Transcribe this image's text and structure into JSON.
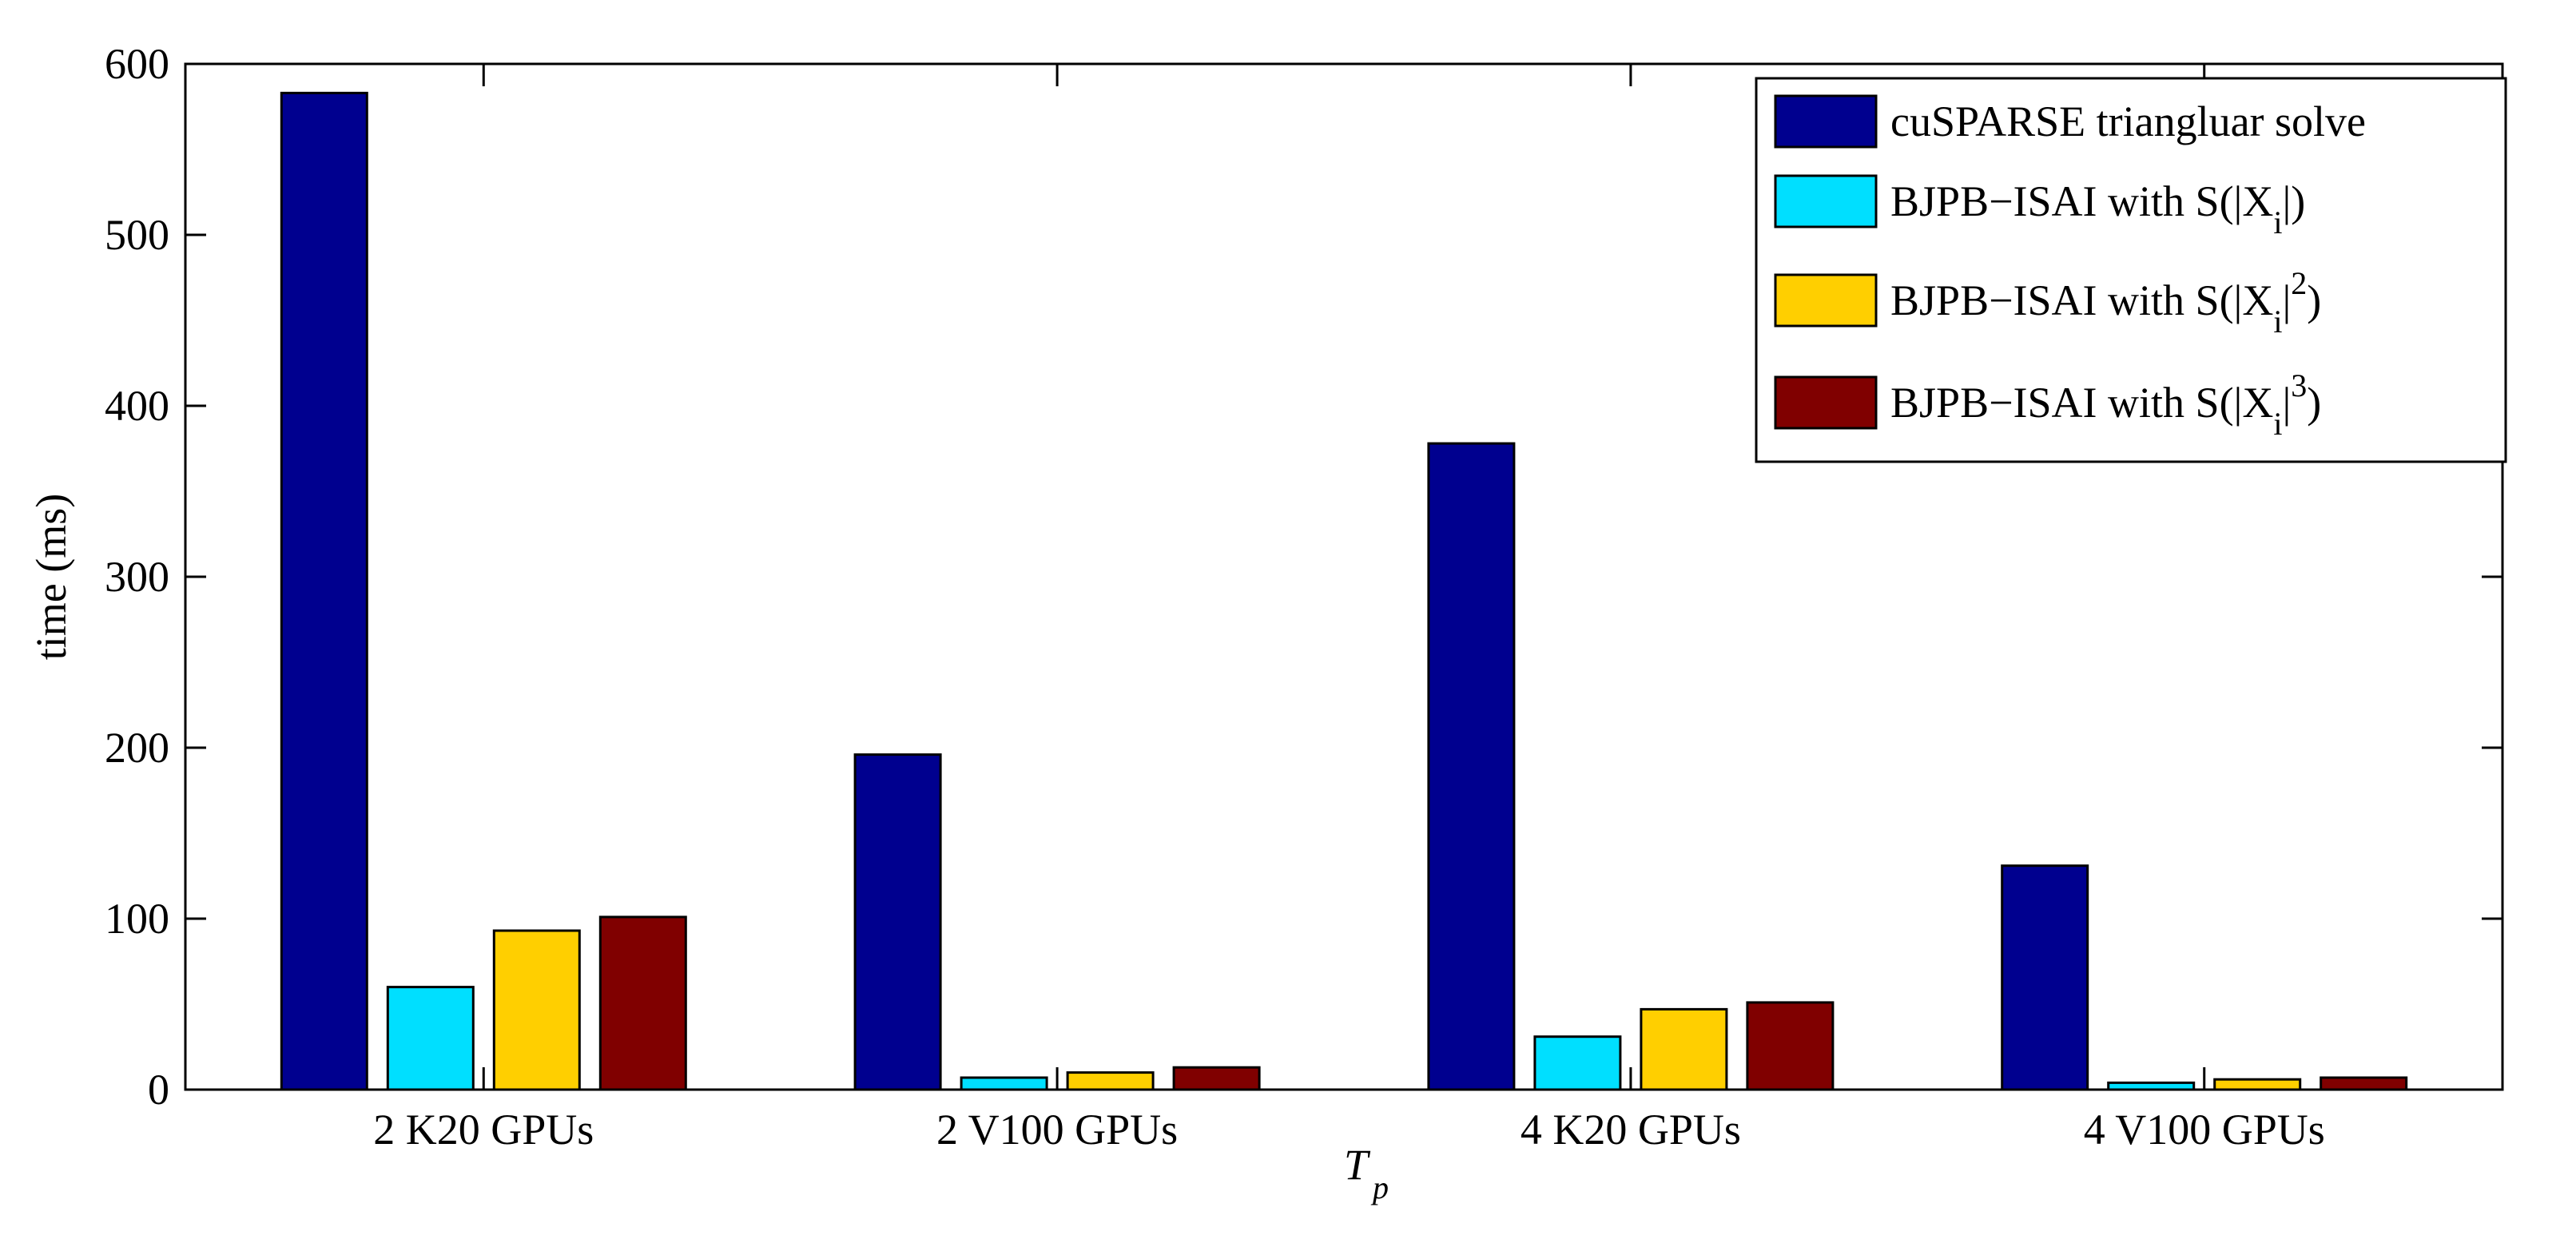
{
  "chart_data": {
    "type": "bar",
    "title": "",
    "xlabel_main": "T",
    "xlabel_sub": "p",
    "ylabel": "time (ms)",
    "ylim": [
      0,
      600
    ],
    "yticks": [
      0,
      100,
      200,
      300,
      400,
      500,
      600
    ],
    "grid": false,
    "legend_position": "top-right",
    "categories": [
      "2 K20 GPUs",
      "2 V100 GPUs",
      "4 K20 GPUs",
      "4 V100 GPUs"
    ],
    "series": [
      {
        "name": "cuSPARSE triangluar solve",
        "color": "#00008F",
        "values": [
          583,
          196,
          378,
          131
        ]
      },
      {
        "name": "BJPB−ISAI with S(|X_i|)",
        "color": "#00DFFF",
        "values": [
          60,
          7,
          31,
          4
        ]
      },
      {
        "name": "BJPB−ISAI with S(|X_i|^2)",
        "color": "#FFCF00",
        "values": [
          93,
          10,
          47,
          6
        ]
      },
      {
        "name": "BJPB−ISAI with S(|X_i|^3)",
        "color": "#800000",
        "values": [
          101,
          13,
          51,
          7
        ]
      }
    ],
    "legend": [
      {
        "prefix": "cuSPARSE triangluar solve",
        "sub": "",
        "mid": "",
        "sup": "",
        "suffix": ""
      },
      {
        "prefix": "BJPB−ISAI with S(|X",
        "sub": "i",
        "mid": "|",
        "sup": "",
        "suffix": ")"
      },
      {
        "prefix": "BJPB−ISAI with S(|X",
        "sub": "i",
        "mid": "|",
        "sup": "2",
        "suffix": ")"
      },
      {
        "prefix": "BJPB−ISAI with S(|X",
        "sub": "i",
        "mid": "|",
        "sup": "3",
        "suffix": ")"
      }
    ]
  }
}
